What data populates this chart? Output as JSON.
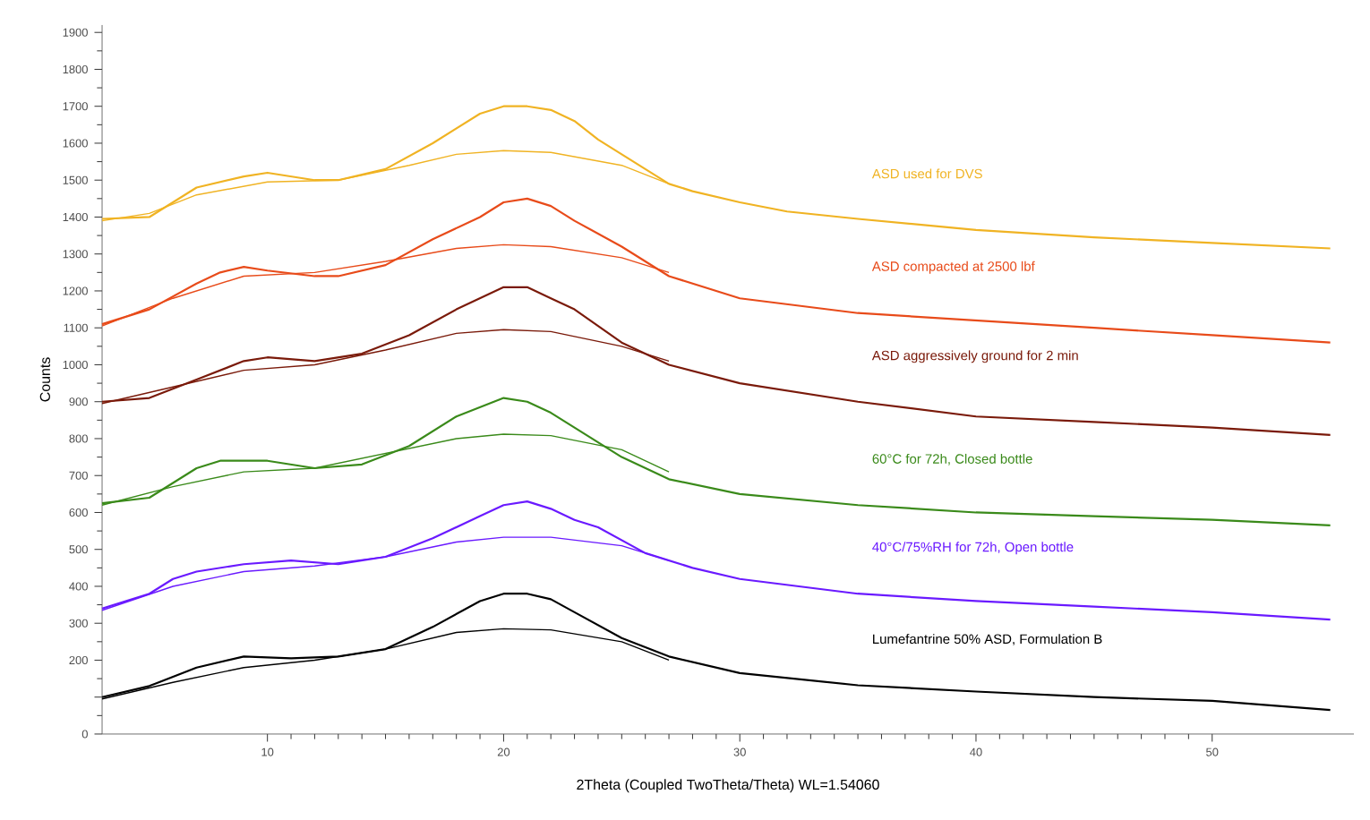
{
  "chart_data": {
    "type": "line",
    "xlabel": "2Theta (Coupled TwoTheta/Theta) WL=1.54060",
    "ylabel": "Counts",
    "xlim": [
      3,
      56
    ],
    "ylim": [
      0,
      1920
    ],
    "xticks": [
      10,
      20,
      30,
      40,
      50
    ],
    "yticks": [
      0,
      {
        "value": 100,
        "label": null
      },
      200,
      300,
      400,
      500,
      600,
      700,
      800,
      900,
      1000,
      1100,
      1200,
      1300,
      1400,
      1500,
      1600,
      1700,
      1800,
      1900
    ],
    "series": [
      {
        "name": "ASD used for DVS",
        "color": "#f0b323",
        "x": [
          3,
          5,
          6,
          7,
          9,
          10,
          12,
          13,
          15,
          17,
          18,
          19,
          20,
          21,
          22,
          23,
          24,
          25,
          26,
          27,
          28,
          30,
          32,
          35,
          40,
          45,
          50,
          55
        ],
        "values": [
          1395,
          1400,
          1440,
          1480,
          1510,
          1520,
          1500,
          1500,
          1530,
          1600,
          1640,
          1680,
          1700,
          1700,
          1690,
          1660,
          1610,
          1570,
          1530,
          1490,
          1470,
          1440,
          1415,
          1395,
          1365,
          1345,
          1330,
          1315
        ]
      },
      {
        "color": "#f0b323",
        "x": [
          3,
          5,
          7,
          10,
          13,
          16,
          18,
          20,
          22,
          25,
          27
        ],
        "values": [
          1390,
          1410,
          1460,
          1495,
          1500,
          1540,
          1570,
          1580,
          1575,
          1540,
          1490
        ]
      },
      {
        "name": "ASD compacted at 2500 lbf",
        "color": "#e84b1a",
        "x": [
          3,
          5,
          7,
          8,
          9,
          10,
          12,
          13,
          15,
          17,
          19,
          20,
          21,
          22,
          23,
          25,
          27,
          30,
          35,
          40,
          45,
          50,
          55
        ],
        "values": [
          1110,
          1150,
          1220,
          1250,
          1265,
          1255,
          1240,
          1240,
          1270,
          1340,
          1400,
          1440,
          1450,
          1430,
          1390,
          1320,
          1240,
          1180,
          1140,
          1120,
          1100,
          1080,
          1060
        ]
      },
      {
        "color": "#e84b1a",
        "x": [
          3,
          6,
          9,
          12,
          15,
          18,
          20,
          22,
          25,
          27
        ],
        "values": [
          1105,
          1180,
          1240,
          1250,
          1280,
          1315,
          1325,
          1320,
          1290,
          1250
        ]
      },
      {
        "name": "ASD aggressively ground for 2 min",
        "color": "#7a1a0a",
        "x": [
          3,
          5,
          7,
          9,
          10,
          12,
          14,
          16,
          18,
          20,
          21,
          22,
          23,
          25,
          27,
          30,
          35,
          40,
          45,
          50,
          55
        ],
        "values": [
          900,
          910,
          960,
          1010,
          1020,
          1010,
          1030,
          1080,
          1150,
          1210,
          1210,
          1180,
          1150,
          1060,
          1000,
          950,
          900,
          860,
          845,
          830,
          810
        ]
      },
      {
        "color": "#7a1a0a",
        "x": [
          3,
          6,
          9,
          12,
          15,
          18,
          20,
          22,
          25,
          27
        ],
        "values": [
          895,
          940,
          985,
          1000,
          1040,
          1085,
          1095,
          1090,
          1050,
          1010
        ]
      },
      {
        "name": "60°C for 72h, Closed bottle",
        "color": "#3a8a1a",
        "x": [
          3,
          5,
          7,
          8,
          10,
          12,
          14,
          16,
          18,
          20,
          21,
          22,
          23,
          25,
          27,
          30,
          35,
          40,
          45,
          50,
          55
        ],
        "values": [
          625,
          640,
          720,
          740,
          740,
          720,
          730,
          780,
          860,
          910,
          900,
          870,
          830,
          750,
          690,
          650,
          620,
          600,
          590,
          580,
          565
        ]
      },
      {
        "color": "#3a8a1a",
        "x": [
          3,
          6,
          9,
          12,
          15,
          18,
          20,
          22,
          25,
          27
        ],
        "values": [
          620,
          670,
          710,
          720,
          760,
          800,
          812,
          808,
          770,
          710
        ]
      },
      {
        "name": "40°C/75%RH for 72h, Open bottle",
        "color": "#6a1aff",
        "x": [
          3,
          5,
          6,
          7,
          9,
          11,
          13,
          15,
          17,
          19,
          20,
          21,
          22,
          23,
          24,
          26,
          28,
          30,
          35,
          40,
          45,
          50,
          55
        ],
        "values": [
          340,
          380,
          420,
          440,
          460,
          470,
          460,
          480,
          530,
          590,
          620,
          630,
          610,
          580,
          560,
          490,
          450,
          420,
          380,
          360,
          345,
          330,
          310
        ]
      },
      {
        "color": "#6a1aff",
        "x": [
          3,
          6,
          9,
          12,
          15,
          18,
          20,
          22,
          25,
          27
        ],
        "values": [
          335,
          400,
          440,
          455,
          480,
          520,
          533,
          533,
          510,
          470
        ]
      },
      {
        "name": "Lumefantrine 50% ASD, Formulation B",
        "color": "#000000",
        "x": [
          3,
          5,
          7,
          9,
          11,
          13,
          15,
          17,
          19,
          20,
          21,
          22,
          23,
          25,
          27,
          30,
          35,
          40,
          45,
          50,
          55
        ],
        "values": [
          100,
          130,
          180,
          210,
          205,
          210,
          230,
          290,
          360,
          380,
          380,
          365,
          330,
          260,
          210,
          165,
          132,
          115,
          100,
          90,
          65
        ]
      },
      {
        "color": "#000000",
        "x": [
          3,
          6,
          9,
          12,
          15,
          18,
          20,
          22,
          25,
          27
        ],
        "values": [
          95,
          140,
          180,
          200,
          230,
          275,
          285,
          282,
          250,
          200
        ]
      }
    ]
  }
}
